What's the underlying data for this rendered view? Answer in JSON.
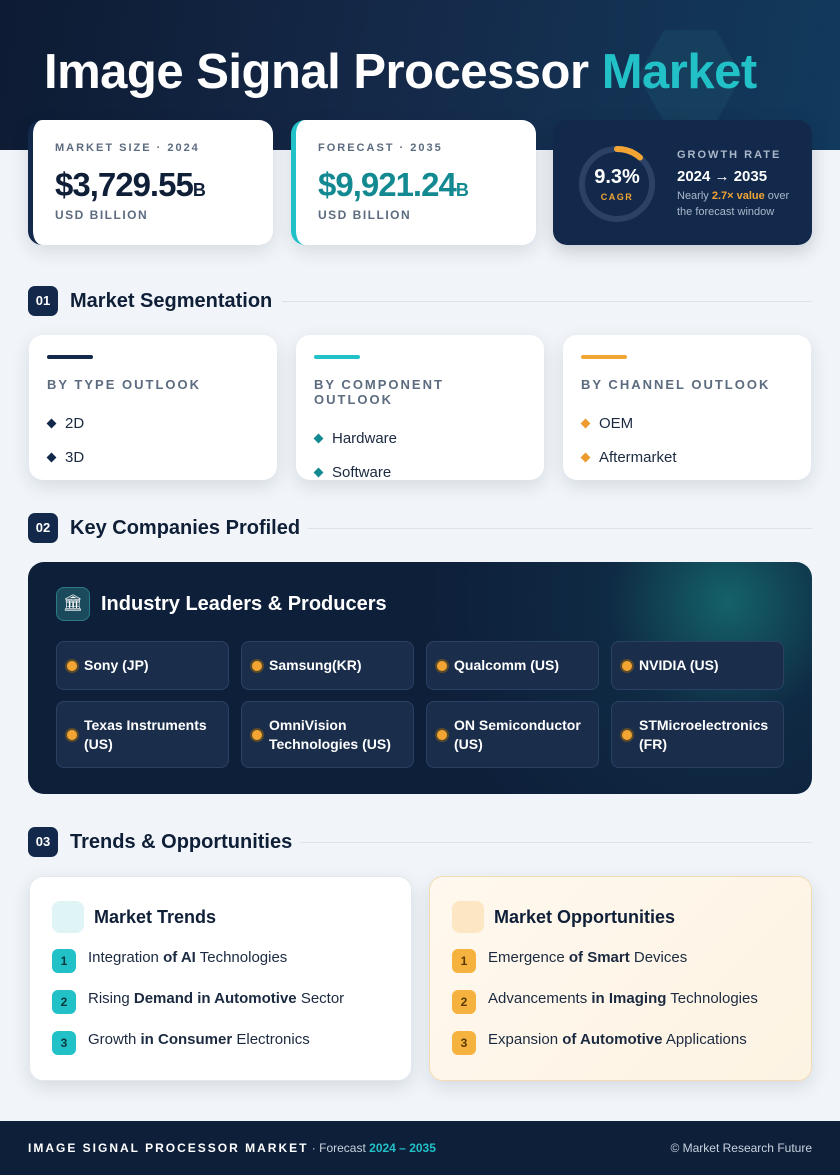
{
  "header": {
    "title": "Image Signal Processor",
    "title_accent": "Market"
  },
  "stats": [
    {
      "label": "MARKET SIZE · 2024",
      "value": "$3,729.55",
      "suffix": "B",
      "unit": "USD BILLION"
    },
    {
      "label": "FORECAST · 2035",
      "value": "$9,921.24",
      "suffix": "B",
      "unit": "USD BILLION"
    }
  ],
  "growth": {
    "value": "9.3%",
    "caption": "CAGR",
    "label": "GROWTH RATE",
    "period": "2024 → 2035",
    "note": [
      "Nearly ",
      "2.7× value",
      " over the forecast window"
    ]
  },
  "sections": [
    {
      "num": "01",
      "title": "Market Segmentation"
    },
    {
      "num": "02",
      "title": "Key Companies Profiled"
    },
    {
      "num": "03",
      "title": "Trends & Opportunities"
    }
  ],
  "segments": [
    {
      "title": "BY TYPE OUTLOOK",
      "items": [
        "2D",
        "3D"
      ]
    },
    {
      "title": "BY COMPONENT OUTLOOK",
      "items": [
        "Hardware",
        "Software"
      ]
    },
    {
      "title": "BY CHANNEL OUTLOOK",
      "items": [
        "OEM",
        "Aftermarket"
      ]
    }
  ],
  "companies": {
    "title": "Industry Leaders & Producers",
    "items": [
      "Sony (JP)",
      "Samsung(KR)",
      "Qualcomm (US)",
      "NVIDIA (US)",
      "Texas Instruments (US)",
      "OmniVision Technologies (US)",
      "ON Semiconductor (US)",
      "STMicroelectronics (FR)"
    ]
  },
  "trends": [
    {
      "title": "Market Trends",
      "items": [
        {
          "num": "1",
          "runs": [
            "Integration ",
            "of AI",
            " Technologies"
          ]
        },
        {
          "num": "2",
          "runs": [
            "Rising ",
            "Demand in Automotive",
            " Sector"
          ]
        },
        {
          "num": "3",
          "runs": [
            "Growth ",
            "in Consumer",
            " Electronics"
          ]
        }
      ]
    },
    {
      "title": "Market Opportunities",
      "items": [
        {
          "num": "1",
          "runs": [
            "Emergence ",
            "of Smart",
            " Devices"
          ]
        },
        {
          "num": "2",
          "runs": [
            "Advancements ",
            "in Imaging",
            " Technologies"
          ]
        },
        {
          "num": "3",
          "runs": [
            "Expansion ",
            "of Automotive",
            " Applications"
          ]
        }
      ]
    }
  ],
  "footer": {
    "title": "IMAGE SIGNAL PROCESSOR MARKET",
    "sub": " · Forecast ",
    "period": "2024 – 2035",
    "credit": "© Market Research Future"
  }
}
